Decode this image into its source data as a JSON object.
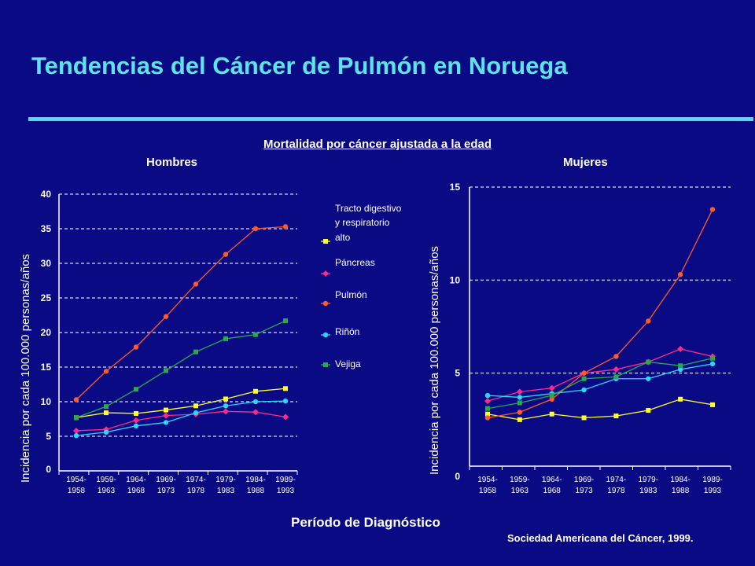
{
  "title": "Tendencias del Cáncer de Pulmón en Noruega",
  "subtitle": "Mortalidad por cáncer ajustada a la edad",
  "xlabel": "Período de Diagnóstico",
  "source": "Sociedad Americana del Cáncer, 1999.",
  "colors": {
    "background": "#0a0a84",
    "title": "#5fe3ea"
  },
  "chart_data": [
    {
      "type": "line",
      "title": "Hombres",
      "ylabel": "Incidencia por cada 100.000 personas/años",
      "xlabel": "Período de Diagnóstico",
      "ylim": [
        0,
        40
      ],
      "yticks": [
        0,
        5,
        10,
        15,
        20,
        25,
        30,
        35,
        40
      ],
      "grid": true,
      "legend": "right",
      "categories": [
        "1954-1958",
        "1959-1963",
        "1964-1968",
        "1969-1973",
        "1974-1978",
        "1979-1983",
        "1984-1988",
        "1989-1993"
      ],
      "category_lines": [
        [
          "1954-",
          "1958"
        ],
        [
          "1959-",
          "1963"
        ],
        [
          "1964-",
          "1968"
        ],
        [
          "1969-",
          "1973"
        ],
        [
          "1974-",
          "1978"
        ],
        [
          "1979-",
          "1983"
        ],
        [
          "1984-",
          "1988"
        ],
        [
          "1989-",
          "1993"
        ]
      ],
      "series": [
        {
          "name": "Tracto digestivo y respiratorio alto",
          "legend_lines": [
            "Tracto digestivo",
            "y respiratorio",
            "alto"
          ],
          "color": "#ffff2a",
          "marker": "square",
          "values": [
            7.7,
            8.4,
            8.3,
            8.8,
            9.4,
            10.4,
            11.5,
            11.9
          ]
        },
        {
          "name": "Páncreas",
          "legend_lines": [
            "Páncreas"
          ],
          "color": "#ff2a88",
          "marker": "diamond",
          "values": [
            5.8,
            6.0,
            7.3,
            8.0,
            8.2,
            8.6,
            8.5,
            7.8
          ]
        },
        {
          "name": "Pulmón",
          "legend_lines": [
            "Pulmón"
          ],
          "color": "#ff5a2a",
          "marker": "circle",
          "values": [
            10.3,
            14.4,
            17.9,
            22.3,
            27.0,
            31.3,
            35.0,
            35.3
          ]
        },
        {
          "name": "Riñón",
          "legend_lines": [
            "Riñón"
          ],
          "color": "#2ad6ff",
          "marker": "circle",
          "values": [
            5.1,
            5.6,
            6.5,
            7.0,
            8.4,
            9.4,
            10.0,
            10.1
          ]
        },
        {
          "name": "Vejiga",
          "legend_lines": [
            "Vejiga"
          ],
          "color": "#2aa84a",
          "marker": "square",
          "values": [
            7.7,
            9.3,
            11.8,
            14.5,
            17.2,
            19.1,
            19.7,
            21.7
          ]
        }
      ]
    },
    {
      "type": "line",
      "title": "Mujeres",
      "ylabel": "Incidencia por cada 100.000 personas/años",
      "xlabel": "Período de Diagnóstico",
      "ylim": [
        0,
        15
      ],
      "yticks": [
        0,
        5,
        10,
        15
      ],
      "grid": true,
      "categories": [
        "1954-1958",
        "1959-1963",
        "1964-1968",
        "1969-1973",
        "1974-1978",
        "1979-1983",
        "1984-1988",
        "1989-1993"
      ],
      "category_lines": [
        [
          "1954-",
          "1958"
        ],
        [
          "1959-",
          "1963"
        ],
        [
          "1964-",
          "1968"
        ],
        [
          "1969-",
          "1973"
        ],
        [
          "1974-",
          "1978"
        ],
        [
          "1979-",
          "1983"
        ],
        [
          "1984-",
          "1988"
        ],
        [
          "1989-",
          "1993"
        ]
      ],
      "series": [
        {
          "name": "Tracto digestivo y respiratorio alto",
          "color": "#ffff2a",
          "marker": "square",
          "values": [
            2.8,
            2.5,
            2.8,
            2.6,
            2.7,
            3.0,
            3.6,
            3.3
          ]
        },
        {
          "name": "Páncreas",
          "color": "#ff2a88",
          "marker": "diamond",
          "values": [
            3.5,
            4.0,
            4.2,
            5.0,
            5.2,
            5.6,
            6.3,
            5.9
          ]
        },
        {
          "name": "Pulmón",
          "color": "#ff5a2a",
          "marker": "circle",
          "values": [
            2.6,
            2.9,
            3.6,
            5.0,
            5.9,
            7.8,
            10.3,
            13.8
          ]
        },
        {
          "name": "Riñón",
          "color": "#2ad6ff",
          "marker": "circle",
          "values": [
            3.8,
            3.7,
            3.9,
            4.1,
            4.7,
            4.7,
            5.2,
            5.5
          ]
        },
        {
          "name": "Vejiga",
          "color": "#2aa84a",
          "marker": "square",
          "values": [
            3.1,
            3.4,
            3.8,
            4.7,
            4.8,
            5.6,
            5.4,
            5.8
          ]
        }
      ]
    }
  ]
}
